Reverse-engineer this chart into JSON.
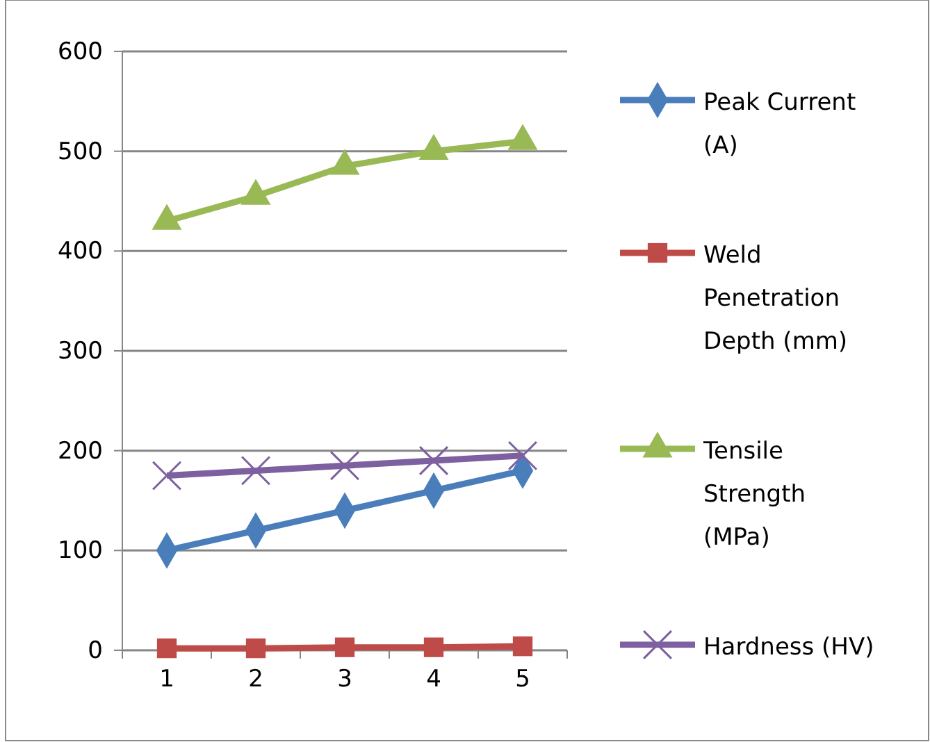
{
  "chart_data": {
    "type": "line",
    "categories": [
      "1",
      "2",
      "3",
      "4",
      "5"
    ],
    "series": [
      {
        "name": "Peak Current (A)",
        "color": "#4a7ebb",
        "marker": "diamond",
        "values": [
          100,
          120,
          140,
          160,
          180
        ]
      },
      {
        "name": "Weld Penetration Depth (mm)",
        "color": "#be4b48",
        "marker": "square",
        "values": [
          2,
          2,
          3,
          3,
          4
        ]
      },
      {
        "name": "Tensile Strength (MPa)",
        "color": "#98b954",
        "marker": "triangle",
        "values": [
          430,
          455,
          485,
          500,
          510
        ]
      },
      {
        "name": "Hardness (HV)",
        "color": "#7d60a0",
        "marker": "cross",
        "values": [
          175,
          180,
          185,
          190,
          195
        ]
      }
    ],
    "ylim": [
      0,
      600
    ],
    "yticks": [
      0,
      100,
      200,
      300,
      400,
      500,
      600
    ],
    "grid": "y",
    "legend": "right"
  }
}
